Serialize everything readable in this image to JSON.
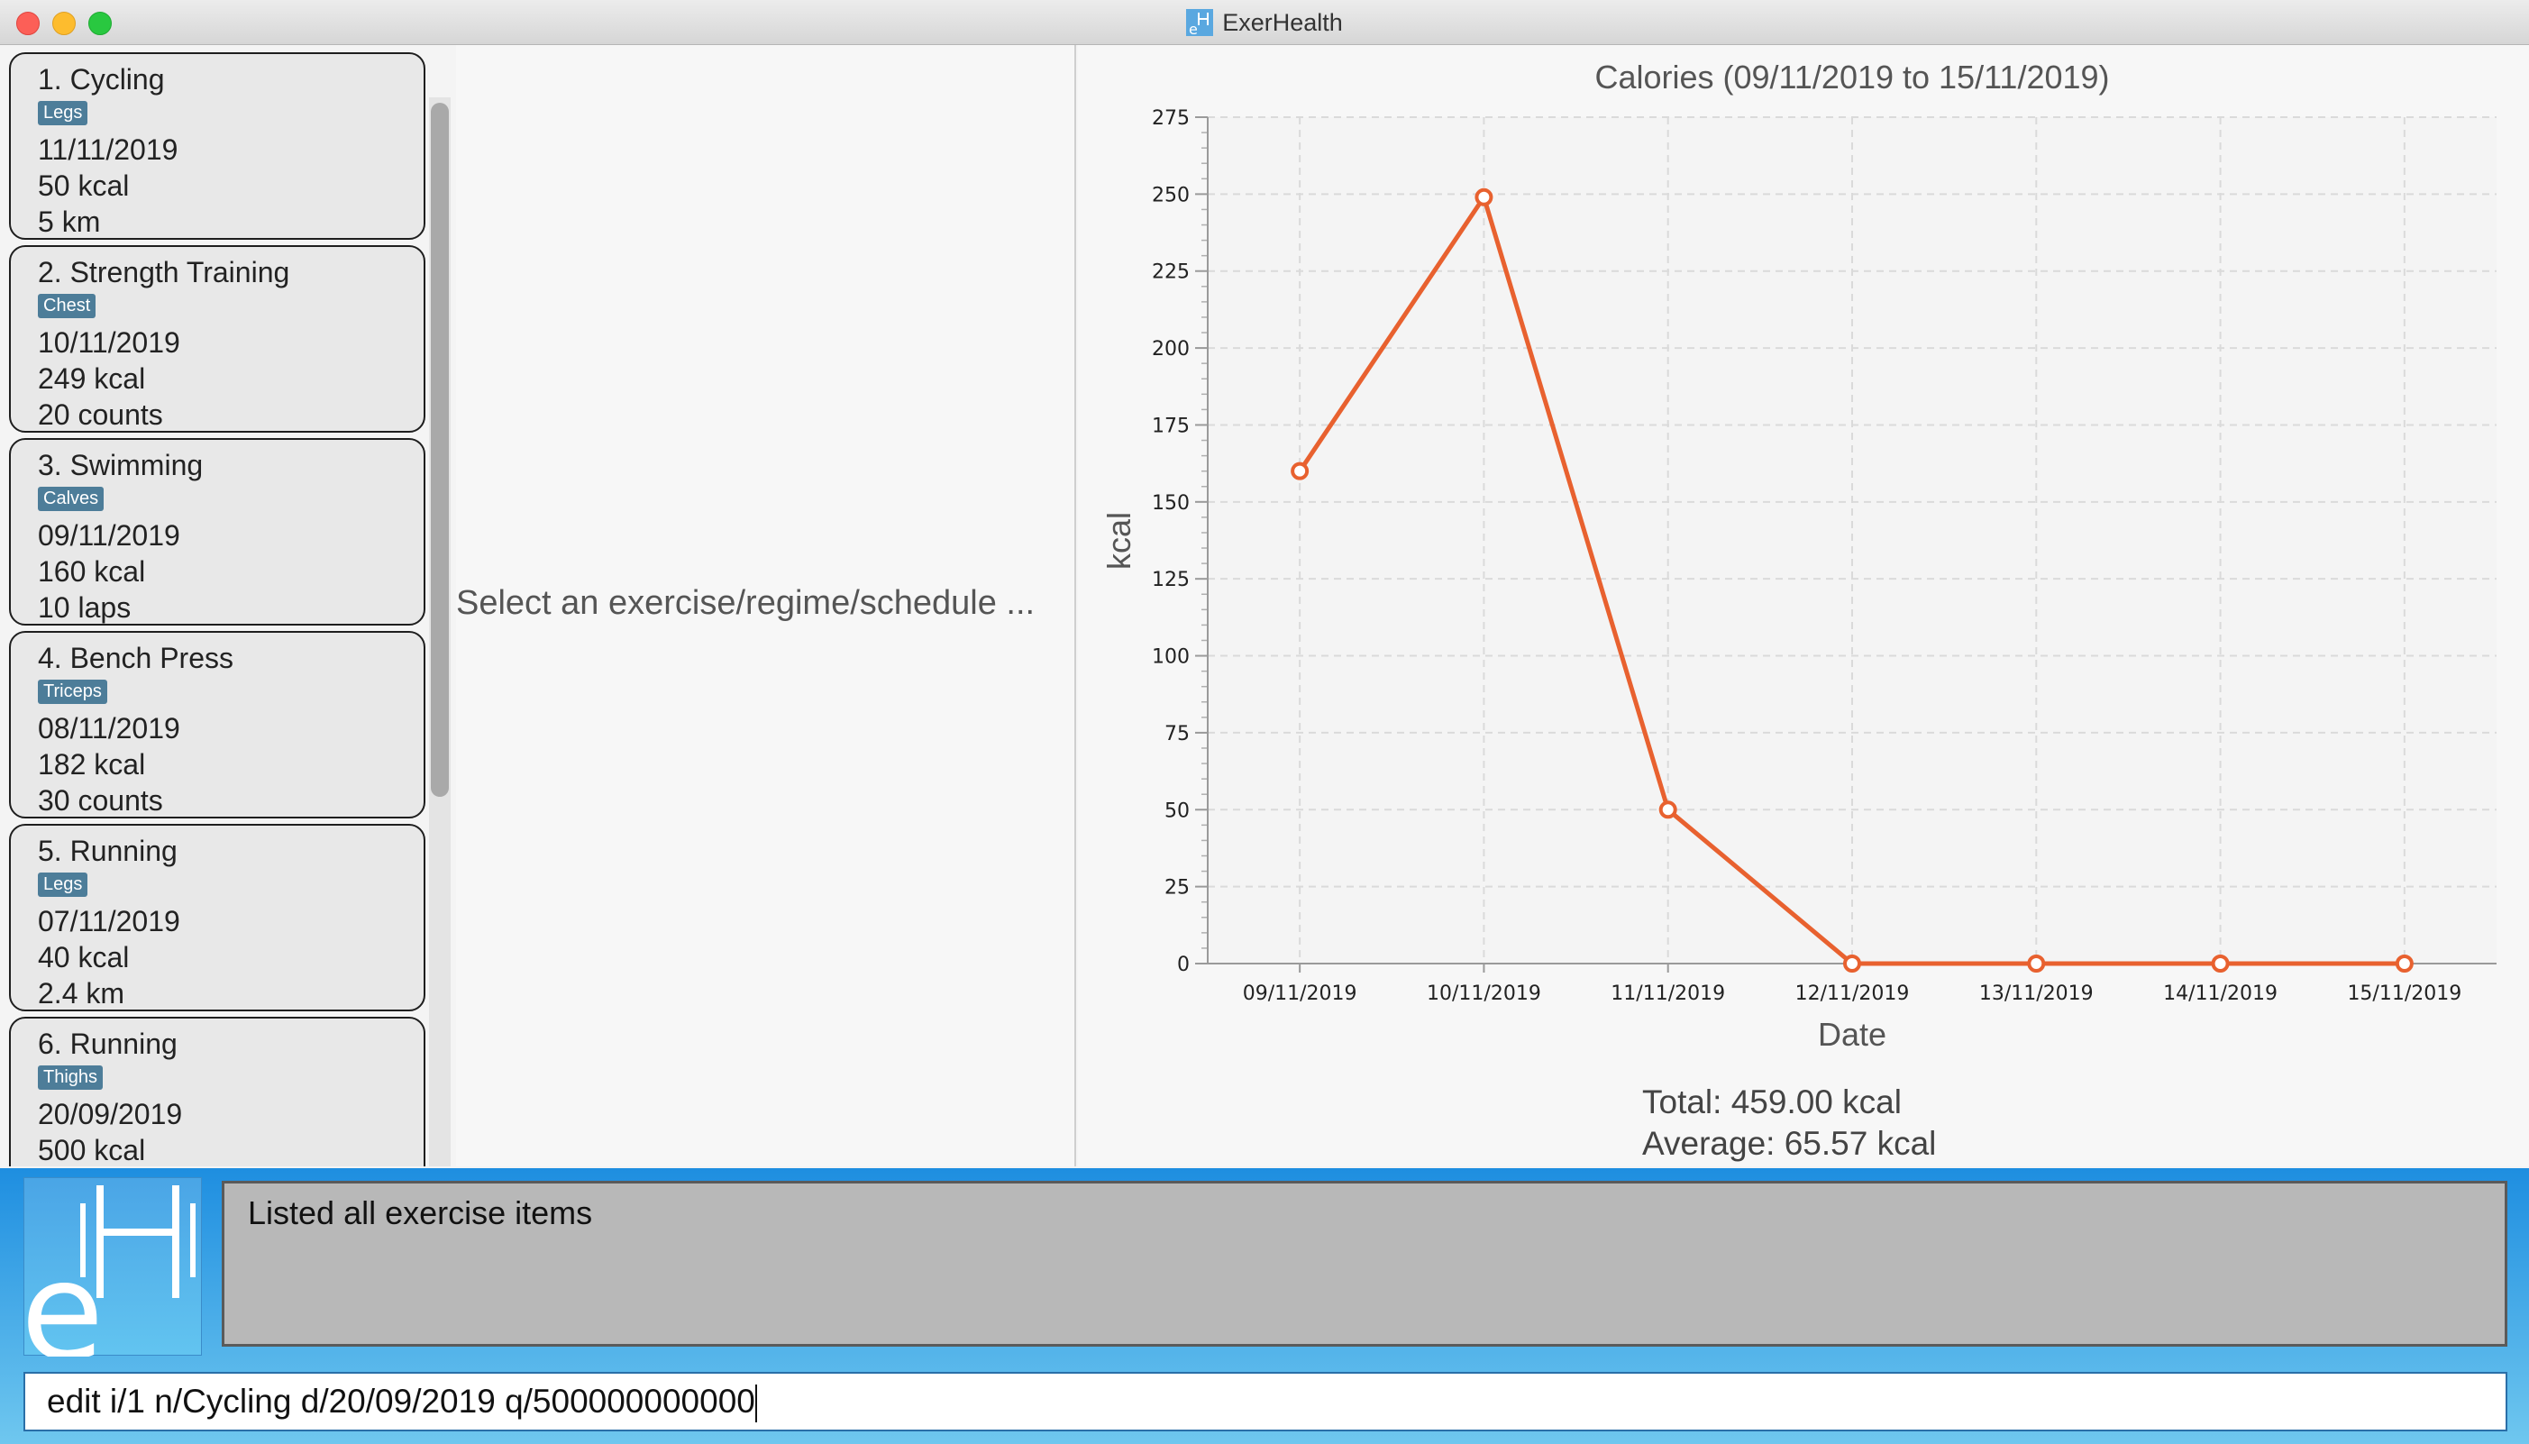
{
  "window": {
    "title": "ExerHealth",
    "icon": "exerhealth-logo-icon"
  },
  "exercises": [
    {
      "title": "1.  Cycling",
      "tag": "Legs",
      "lines": [
        "11/11/2019",
        "50 kcal",
        "5 km"
      ]
    },
    {
      "title": "2.  Strength Training",
      "tag": "Chest",
      "lines": [
        "10/11/2019",
        "249 kcal",
        "20 counts"
      ]
    },
    {
      "title": "3.  Swimming",
      "tag": "Calves",
      "lines": [
        "09/11/2019",
        "160 kcal",
        "10 laps"
      ]
    },
    {
      "title": "4.  Bench Press",
      "tag": "Triceps",
      "lines": [
        "08/11/2019",
        "182 kcal",
        "30 counts"
      ]
    },
    {
      "title": "5.  Running",
      "tag": "Legs",
      "lines": [
        "07/11/2019",
        "40 kcal",
        "2.4 km"
      ]
    },
    {
      "title": "6.  Running",
      "tag": "Thighs",
      "lines": [
        "20/09/2019",
        "500 kcal",
        ""
      ]
    }
  ],
  "detail": {
    "placeholder": "Select an exercise/regime/schedule ..."
  },
  "stats": {
    "total": "Total: 459.00 kcal",
    "average": "Average: 65.57 kcal"
  },
  "result": {
    "message": "Listed all exercise items"
  },
  "command": {
    "value": "edit i/1 n/Cycling d/20/09/2019 q/500000000000"
  },
  "colors": {
    "line": "#e8612f",
    "accent": "#1e8ee0"
  },
  "chart_data": {
    "type": "line",
    "title": "Calories (09/11/2019 to 15/11/2019)",
    "xlabel": "Date",
    "ylabel": "kcal",
    "categories": [
      "09/11/2019",
      "10/11/2019",
      "11/11/2019",
      "12/11/2019",
      "13/11/2019",
      "14/11/2019",
      "15/11/2019"
    ],
    "series": [
      {
        "values": [
          160,
          249,
          50,
          0,
          0,
          0,
          0
        ]
      }
    ],
    "ylim": [
      0,
      275
    ],
    "yticks": [
      0,
      25,
      50,
      75,
      100,
      125,
      150,
      175,
      200,
      225,
      250,
      275
    ],
    "grid": true
  }
}
